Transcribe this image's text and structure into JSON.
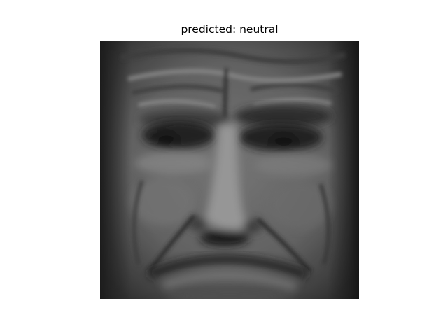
{
  "figure": {
    "title": "predicted: neutral"
  },
  "image": {
    "subject": "grayscale-face",
    "colors": {
      "background": "#ffffff",
      "face_base": "#5f5f5f",
      "highlight": "#9a9a9a",
      "shadow": "#1c1c1c"
    }
  }
}
